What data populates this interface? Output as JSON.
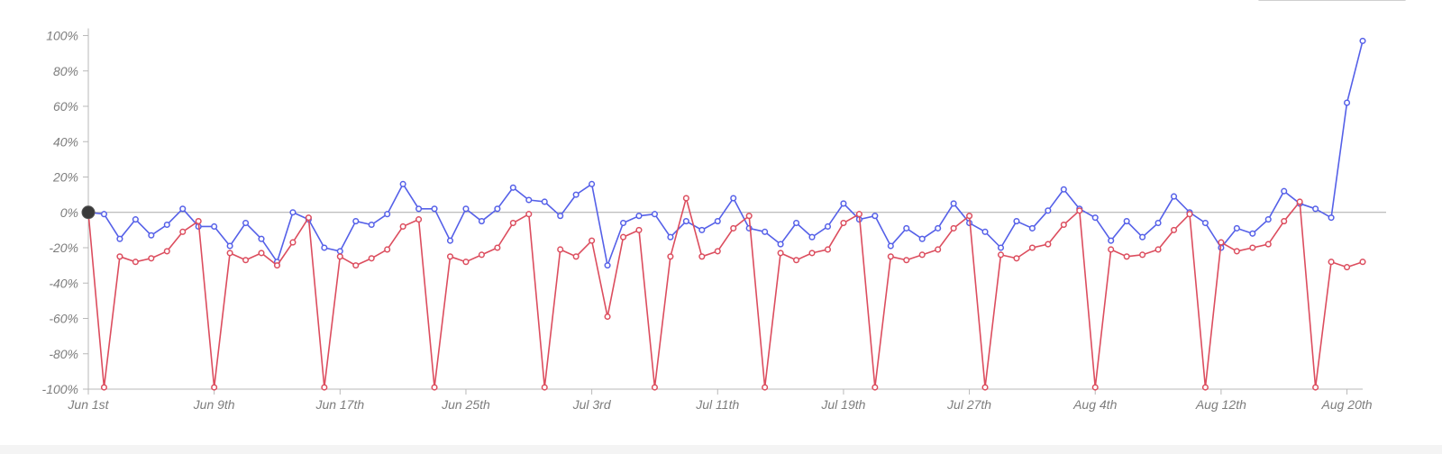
{
  "chart_data": {
    "type": "line",
    "title": "",
    "xlabel": "",
    "ylabel": "",
    "ylim": [
      -100,
      100
    ],
    "y_ticks": [
      {
        "value": 100,
        "label": "100%"
      },
      {
        "value": 80,
        "label": "80%"
      },
      {
        "value": 60,
        "label": "60%"
      },
      {
        "value": 40,
        "label": "40%"
      },
      {
        "value": 20,
        "label": "20%"
      },
      {
        "value": 0,
        "label": "0%"
      },
      {
        "value": -20,
        "label": "-20%"
      },
      {
        "value": -40,
        "label": "-40%"
      },
      {
        "value": -60,
        "label": "-60%"
      },
      {
        "value": -80,
        "label": "-80%"
      },
      {
        "value": -100,
        "label": "-100%"
      }
    ],
    "x_range": [
      "2020-06-01",
      "2020-08-21"
    ],
    "x_ticks": [
      {
        "date": "2020-06-01",
        "label": "Jun 1st"
      },
      {
        "date": "2020-06-09",
        "label": "Jun 9th"
      },
      {
        "date": "2020-06-17",
        "label": "Jun 17th"
      },
      {
        "date": "2020-06-25",
        "label": "Jun 25th"
      },
      {
        "date": "2020-07-03",
        "label": "Jul 3rd"
      },
      {
        "date": "2020-07-11",
        "label": "Jul 11th"
      },
      {
        "date": "2020-07-19",
        "label": "Jul 19th"
      },
      {
        "date": "2020-07-27",
        "label": "Jul 27th"
      },
      {
        "date": "2020-08-04",
        "label": "Aug 4th"
      },
      {
        "date": "2020-08-12",
        "label": "Aug 12th"
      },
      {
        "date": "2020-08-20",
        "label": "Aug 20th"
      }
    ],
    "reference_line": 0,
    "highlight_point": {
      "date": "2020-06-01",
      "value": 0
    },
    "grid": false,
    "series": [
      {
        "color": "#5560e8",
        "start_date": "2020-06-01",
        "values": [
          0,
          -1,
          -15,
          -4,
          -13,
          -7,
          2,
          -8,
          -8,
          -19,
          -6,
          -15,
          -28,
          0,
          -4,
          -20,
          -22,
          -5,
          -7,
          -1,
          16,
          2,
          2,
          -16,
          2,
          -5,
          2,
          14,
          7,
          6,
          -2,
          10,
          16,
          -30,
          -6,
          -2,
          -1,
          -14,
          -5,
          -10,
          -5,
          8,
          -9,
          -11,
          -18,
          -6,
          -14,
          -8,
          5,
          -4,
          -2,
          -19,
          -9,
          -15,
          -9,
          5,
          -6,
          -11,
          -20,
          -5,
          -9,
          1,
          13,
          2,
          -3,
          -16,
          -5,
          -14,
          -6,
          9,
          0,
          -6,
          -20,
          -9,
          -12,
          -4,
          12,
          5,
          2,
          -3,
          62,
          97
        ]
      },
      {
        "color": "#dc4d5e",
        "start_date": "2020-06-01",
        "values": [
          0,
          -99,
          -25,
          -28,
          -26,
          -22,
          -11,
          -5,
          -99,
          -23,
          -27,
          -23,
          -30,
          -17,
          -3,
          -99,
          -25,
          -30,
          -26,
          -21,
          -8,
          -4,
          -99,
          -25,
          -28,
          -24,
          -20,
          -6,
          -1,
          -99,
          -21,
          -25,
          -16,
          -59,
          -14,
          -10,
          -99,
          -25,
          8,
          -25,
          -22,
          -9,
          -2,
          -99,
          -23,
          -27,
          -23,
          -21,
          -6,
          -1,
          -99,
          -25,
          -27,
          -24,
          -21,
          -9,
          -2,
          -99,
          -24,
          -26,
          -20,
          -18,
          -7,
          1,
          -99,
          -21,
          -25,
          -24,
          -21,
          -10,
          -1,
          -99,
          -17,
          -22,
          -20,
          -18,
          -5,
          6,
          -99,
          -28,
          -31,
          -28
        ]
      }
    ]
  }
}
